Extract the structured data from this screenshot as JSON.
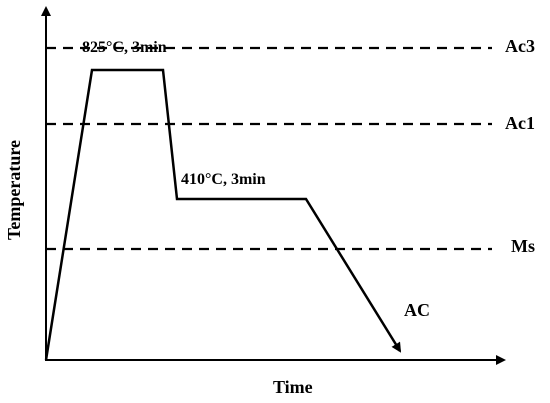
{
  "axes": {
    "x_label": "Time",
    "y_label": "Temperature"
  },
  "levels": [
    {
      "label": "Ac3"
    },
    {
      "label": "Ac1"
    },
    {
      "label": "Ms"
    }
  ],
  "annotations": {
    "austenitize": "825°C, 3min",
    "austemper": "410°C, 3min",
    "cooling": "AC"
  }
}
